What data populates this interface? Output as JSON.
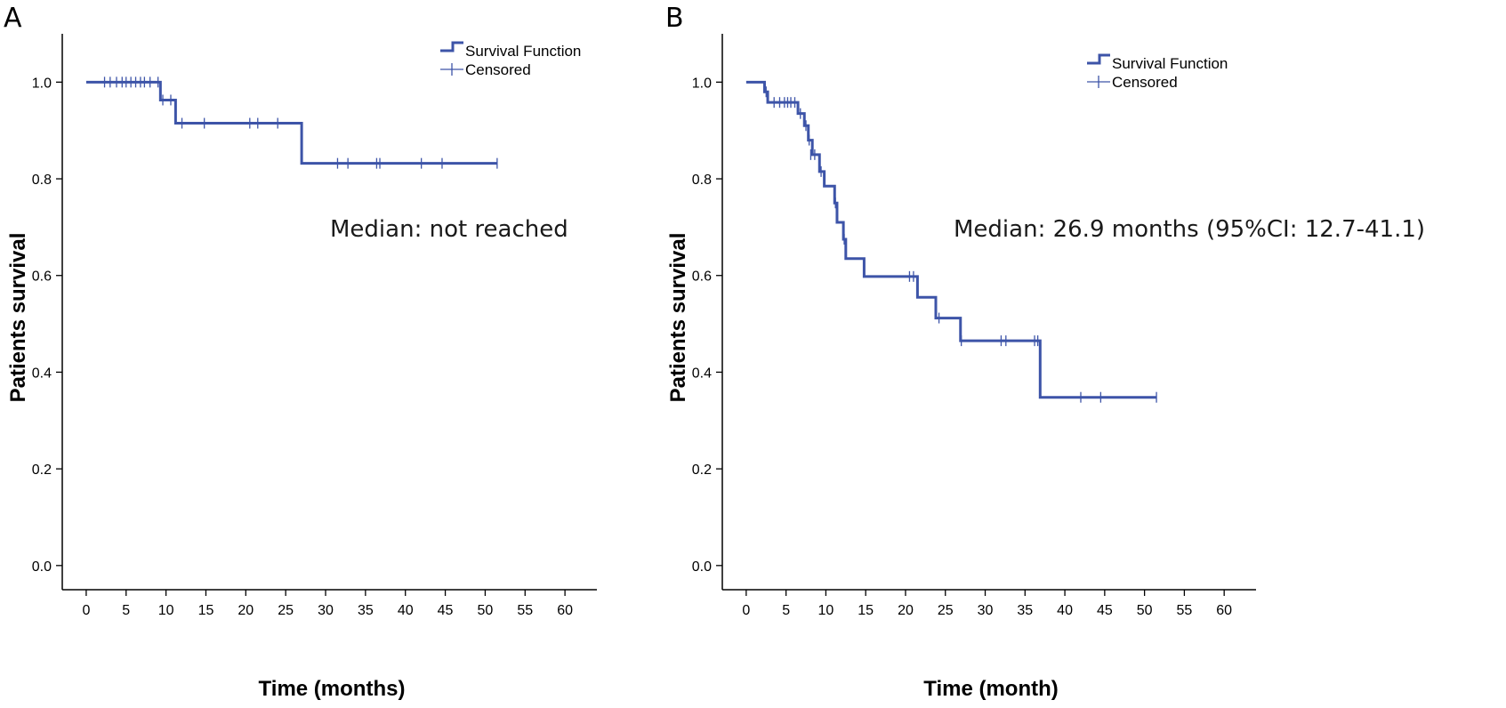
{
  "chart_data": [
    {
      "type": "line",
      "subtype": "kaplan-meier",
      "panel_label": "A",
      "xlabel": "Time (months)",
      "ylabel": "Patients survival",
      "xlim": [
        -3,
        64
      ],
      "ylim": [
        -0.05,
        1.1
      ],
      "xticks": [
        "0",
        "5",
        "10",
        "15",
        "20",
        "25",
        "30",
        "35",
        "40",
        "45",
        "50",
        "55",
        "60"
      ],
      "yticks": [
        "0.0",
        "0.2",
        "0.4",
        "0.6",
        "0.8",
        "1.0"
      ],
      "legend": {
        "position": "top-right",
        "survival_label": "Survival Function",
        "censored_label": "Censored"
      },
      "annotation": "Median: not reached",
      "steps": [
        [
          0,
          1.0
        ],
        [
          9.3,
          0.963
        ],
        [
          11.2,
          0.915
        ],
        [
          27.0,
          0.832
        ],
        [
          51.5,
          0.832
        ]
      ],
      "censored": [
        [
          2.3,
          1.0
        ],
        [
          3.0,
          1.0
        ],
        [
          3.8,
          1.0
        ],
        [
          4.5,
          1.0
        ],
        [
          5.0,
          1.0
        ],
        [
          5.6,
          1.0
        ],
        [
          6.2,
          1.0
        ],
        [
          6.8,
          1.0
        ],
        [
          7.3,
          1.0
        ],
        [
          8.0,
          1.0
        ],
        [
          9.0,
          1.0
        ],
        [
          9.6,
          0.963
        ],
        [
          10.6,
          0.963
        ],
        [
          12.0,
          0.915
        ],
        [
          14.8,
          0.915
        ],
        [
          20.5,
          0.915
        ],
        [
          21.5,
          0.915
        ],
        [
          24.0,
          0.915
        ],
        [
          31.5,
          0.832
        ],
        [
          32.8,
          0.832
        ],
        [
          36.4,
          0.832
        ],
        [
          36.8,
          0.832
        ],
        [
          42.0,
          0.832
        ],
        [
          44.6,
          0.832
        ],
        [
          51.5,
          0.832
        ]
      ]
    },
    {
      "type": "line",
      "subtype": "kaplan-meier",
      "panel_label": "B",
      "xlabel": "Time (month)",
      "ylabel": "Patients survival",
      "xlim": [
        -3,
        64
      ],
      "ylim": [
        -0.05,
        1.1
      ],
      "xticks": [
        "0",
        "5",
        "10",
        "15",
        "20",
        "25",
        "30",
        "35",
        "40",
        "45",
        "50",
        "55",
        "60"
      ],
      "yticks": [
        "0.0",
        "0.2",
        "0.4",
        "0.6",
        "0.8",
        "1.0"
      ],
      "legend": {
        "position": "top-right",
        "survival_label": "Survival Function",
        "censored_label": "Censored"
      },
      "annotation": "Median: 26.9 months (95%CI: 12.7-41.1)",
      "steps": [
        [
          0,
          1.0
        ],
        [
          2.3,
          0.98
        ],
        [
          2.7,
          0.958
        ],
        [
          6.5,
          0.935
        ],
        [
          7.3,
          0.91
        ],
        [
          7.8,
          0.88
        ],
        [
          8.3,
          0.85
        ],
        [
          9.2,
          0.815
        ],
        [
          9.8,
          0.785
        ],
        [
          11.1,
          0.75
        ],
        [
          11.4,
          0.71
        ],
        [
          12.2,
          0.675
        ],
        [
          12.5,
          0.635
        ],
        [
          14.8,
          0.598
        ],
        [
          21.5,
          0.555
        ],
        [
          23.8,
          0.512
        ],
        [
          26.9,
          0.465
        ],
        [
          36.9,
          0.348
        ],
        [
          51.5,
          0.348
        ]
      ],
      "censored": [
        [
          2.5,
          0.98
        ],
        [
          3.5,
          0.958
        ],
        [
          4.2,
          0.958
        ],
        [
          4.8,
          0.958
        ],
        [
          5.2,
          0.958
        ],
        [
          5.6,
          0.958
        ],
        [
          6.1,
          0.958
        ],
        [
          6.8,
          0.935
        ],
        [
          7.5,
          0.91
        ],
        [
          7.9,
          0.88
        ],
        [
          8.1,
          0.85
        ],
        [
          8.6,
          0.85
        ],
        [
          9.4,
          0.815
        ],
        [
          11.2,
          0.75
        ],
        [
          12.3,
          0.675
        ],
        [
          20.5,
          0.598
        ],
        [
          21.0,
          0.598
        ],
        [
          24.2,
          0.512
        ],
        [
          27.0,
          0.465
        ],
        [
          32.0,
          0.465
        ],
        [
          32.6,
          0.465
        ],
        [
          36.2,
          0.465
        ],
        [
          36.6,
          0.465
        ],
        [
          42.0,
          0.348
        ],
        [
          44.5,
          0.348
        ],
        [
          51.5,
          0.348
        ]
      ]
    }
  ]
}
